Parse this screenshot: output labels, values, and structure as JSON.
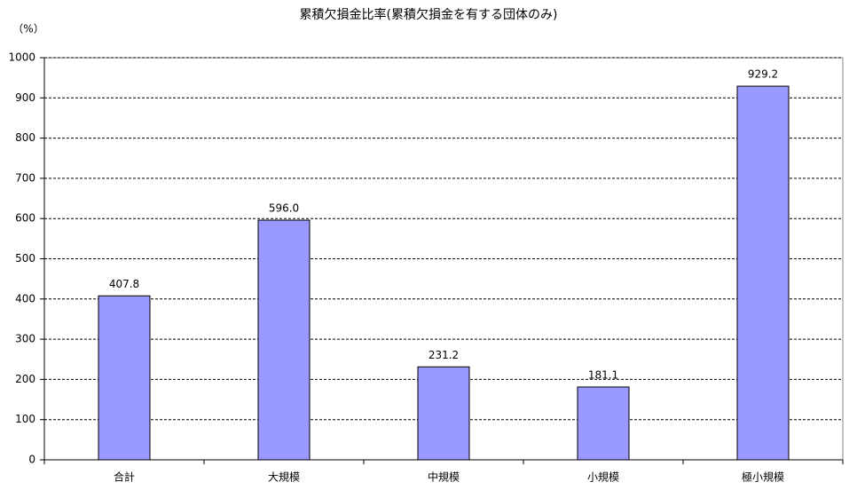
{
  "chart_data": {
    "type": "bar",
    "title": "累積欠損金比率(累積欠損金を有する団体のみ)",
    "y_label": "（%）",
    "categories": [
      "合計",
      "大規模",
      "中規模",
      "小規模",
      "極小規模"
    ],
    "values": [
      407.8,
      596.0,
      231.2,
      181.1,
      929.2
    ],
    "value_labels": [
      "407.8",
      "596.0",
      "231.2",
      "181.1",
      "929.2"
    ],
    "color": "#9999ff",
    "ylim": [
      0,
      1000
    ],
    "yticks": [
      0,
      100,
      200,
      300,
      400,
      500,
      600,
      700,
      800,
      900,
      1000
    ],
    "grid": true
  }
}
